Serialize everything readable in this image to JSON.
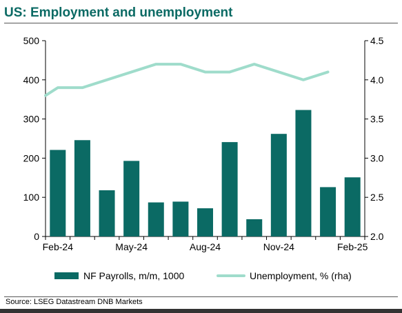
{
  "chart_data": {
    "type": "bar",
    "title": "US: Employment and unemployment",
    "categories": [
      "Feb-24",
      "Mar-24",
      "Apr-24",
      "May-24",
      "Jun-24",
      "Jul-24",
      "Aug-24",
      "Sep-24",
      "Oct-24",
      "Nov-24",
      "Dec-24",
      "Jan-25",
      "Feb-25"
    ],
    "x_tick_labels": [
      "Feb-24",
      "May-24",
      "Aug-24",
      "Nov-24",
      "Feb-25"
    ],
    "y_left": {
      "lim": [
        0,
        500
      ],
      "ticks": [
        0,
        100,
        200,
        300,
        400,
        500
      ],
      "tick_labels": [
        "0",
        "100",
        "200",
        "300",
        "400",
        "500"
      ]
    },
    "y_right": {
      "lim": [
        2.0,
        4.5
      ],
      "ticks": [
        2.0,
        2.5,
        3.0,
        3.5,
        4.0,
        4.5
      ],
      "tick_labels": [
        "2.0",
        "2.5",
        "3.0",
        "3.5",
        "4.0",
        "4.5"
      ]
    },
    "series": [
      {
        "name": "NF Payrolls, m/m, 1000",
        "type": "bar",
        "axis": "left",
        "color": "#0b6a64",
        "values": [
          221,
          246,
          118,
          193,
          87,
          89,
          72,
          241,
          44,
          262,
          323,
          126,
          151
        ]
      },
      {
        "name": "Unemployment, % (rha)",
        "type": "line",
        "axis": "right",
        "color": "#9fdccb",
        "x": [
          0,
          0.5,
          1,
          2,
          3,
          4,
          5,
          6,
          7,
          8,
          9,
          10,
          11,
          12
        ],
        "values": [
          3.8,
          3.9,
          3.9,
          3.9,
          4.0,
          4.1,
          4.2,
          4.2,
          4.1,
          4.1,
          4.2,
          4.1,
          4.0,
          4.1
        ]
      }
    ],
    "legend_position": "bottom",
    "grid": false
  },
  "source": "Source: LSEG Datastream DNB Markets"
}
